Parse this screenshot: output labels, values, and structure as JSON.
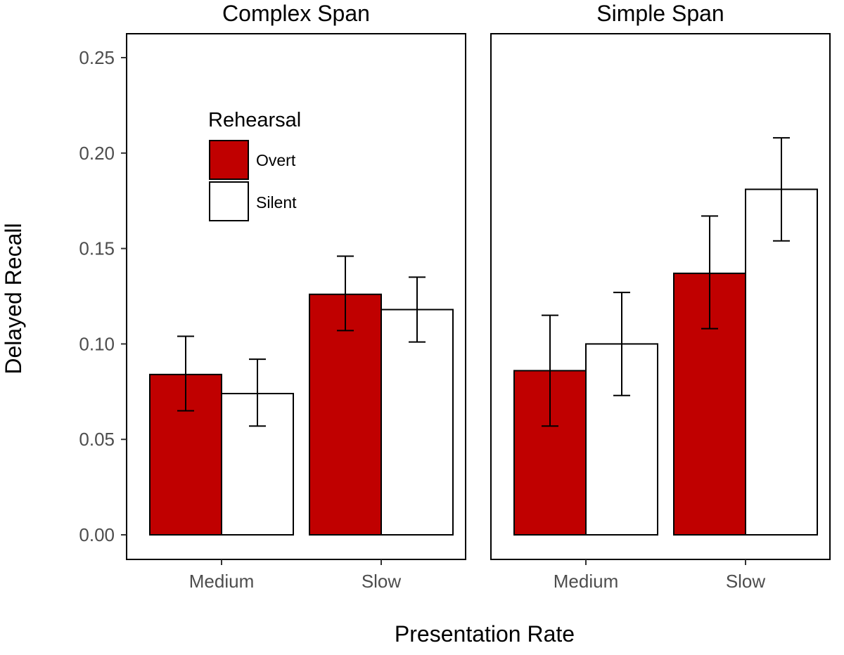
{
  "chart_data": {
    "type": "bar",
    "ylabel": "Delayed Recall",
    "xlabel": "Presentation Rate",
    "ylim": [
      0,
      0.26
    ],
    "yticks": [
      "0.00",
      "0.05",
      "0.10",
      "0.15",
      "0.20",
      "0.25"
    ],
    "ytick_values": [
      0,
      0.05,
      0.1,
      0.15,
      0.2,
      0.25
    ],
    "categories": [
      "Medium",
      "Slow"
    ],
    "legend": {
      "title": "Rehearsal",
      "placement": "top-left of left panel",
      "entries": [
        {
          "name": "Overt",
          "color": "#c00000"
        },
        {
          "name": "Silent",
          "color": "#ffffff"
        }
      ]
    },
    "panels": [
      {
        "title": "Complex Span",
        "series": [
          {
            "name": "Overt",
            "values": [
              0.084,
              0.126
            ],
            "err_low": [
              0.065,
              0.107
            ],
            "err_high": [
              0.104,
              0.146
            ]
          },
          {
            "name": "Silent",
            "values": [
              0.074,
              0.118
            ],
            "err_low": [
              0.057,
              0.101
            ],
            "err_high": [
              0.092,
              0.135
            ]
          }
        ]
      },
      {
        "title": "Simple Span",
        "series": [
          {
            "name": "Overt",
            "values": [
              0.086,
              0.137
            ],
            "err_low": [
              0.057,
              0.108
            ],
            "err_high": [
              0.115,
              0.167
            ]
          },
          {
            "name": "Silent",
            "values": [
              0.1,
              0.181
            ],
            "err_low": [
              0.073,
              0.154
            ],
            "err_high": [
              0.127,
              0.208
            ]
          }
        ]
      }
    ]
  }
}
